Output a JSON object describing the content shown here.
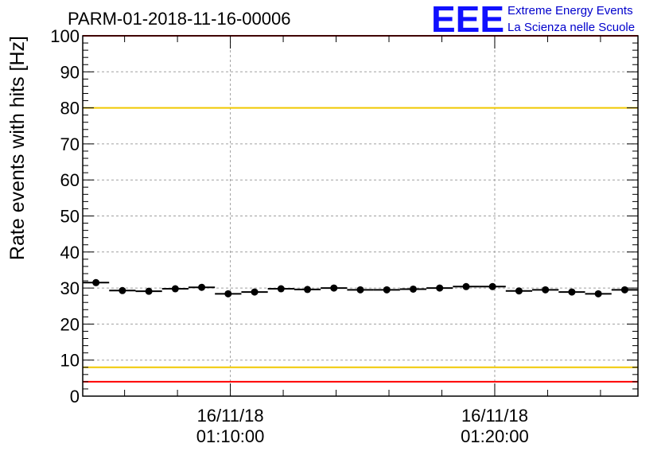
{
  "header": {
    "run_title": "PARM-01-2018-11-16-00006",
    "logo_text": "EEE",
    "logo_line1": "Extreme Energy Events",
    "logo_line2": "La Scienza nelle Scuole"
  },
  "colors": {
    "frame": "#000000",
    "grid": "#a0a0a0",
    "upper_limit": "#ff0000",
    "upper_warning": "#f0c800",
    "lower_warning": "#f0c800",
    "lower_limit": "#ff0000",
    "points": "#000000",
    "logo": "#1010ff"
  },
  "chart_data": {
    "type": "scatter",
    "title": "PARM-01-2018-11-16-00006",
    "ylabel": "Rate events with hits [Hz]",
    "xlabel": "",
    "ylim": [
      0,
      100
    ],
    "yticks": [
      0,
      10,
      20,
      30,
      40,
      50,
      60,
      70,
      80,
      90,
      100
    ],
    "xlim": [
      "16/11/18 01:04:25",
      "16/11/18 01:25:25"
    ],
    "xticks": [
      {
        "date": "16/11/18",
        "time": "01:10:00"
      },
      {
        "date": "16/11/18",
        "time": "01:20:00"
      }
    ],
    "grid": true,
    "reference_lines": [
      {
        "y": 100,
        "color": "#ff0000"
      },
      {
        "y": 80,
        "color": "#f0c800"
      },
      {
        "y": 8,
        "color": "#f0c800"
      },
      {
        "y": 4,
        "color": "#ff0000"
      }
    ],
    "bin_width_seconds": 60,
    "series": [
      {
        "x": [
          "01:04:55",
          "01:05:55",
          "01:06:55",
          "01:07:55",
          "01:08:55",
          "01:09:55",
          "01:10:55",
          "01:11:55",
          "01:12:55",
          "01:13:55",
          "01:14:55",
          "01:15:55",
          "01:16:55",
          "01:17:55",
          "01:18:55",
          "01:19:55",
          "01:20:55",
          "01:21:55",
          "01:22:55",
          "01:23:55",
          "01:24:55"
        ],
        "y": [
          31.5,
          29.3,
          29.1,
          29.8,
          30.2,
          28.4,
          28.9,
          29.8,
          29.6,
          30.0,
          29.5,
          29.5,
          29.7,
          30.0,
          30.4,
          30.4,
          29.2,
          29.5,
          28.9,
          28.4,
          29.5
        ]
      }
    ]
  }
}
